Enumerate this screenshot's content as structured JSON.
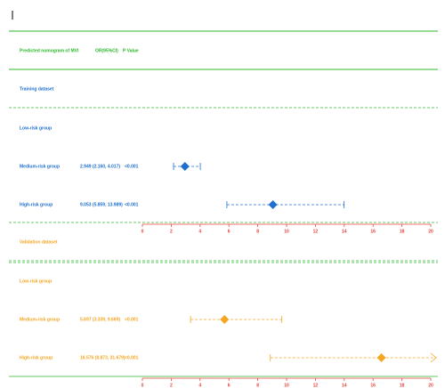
{
  "chart_data": {
    "type": "forest",
    "header": {
      "title": "Predicted nomogram of MVI",
      "or_label": "OR(95%CI)",
      "p_label": "P Value"
    },
    "xlim": [
      0,
      20
    ],
    "xticks": [
      0,
      2,
      4,
      6,
      8,
      10,
      12,
      14,
      16,
      18,
      20
    ],
    "axis_color": "#e8453c",
    "line_color": "#2db82d",
    "groups": [
      {
        "name": "Training dataset",
        "color": "#1f6fd1",
        "rows": [
          {
            "label": "Low-risk group"
          },
          {
            "label": "Medium-risk group",
            "or_text": "2.949 (2.160, 4.017)",
            "p": "<0.001",
            "value": 2.949,
            "lower": 2.16,
            "upper": 4.017
          },
          {
            "label": "High-risk group",
            "or_text": "9.053 (5.859, 13.989)",
            "p": "<0.001",
            "value": 9.053,
            "lower": 5.859,
            "upper": 13.989
          }
        ]
      },
      {
        "name": "Validation dataset",
        "color": "#f5a623",
        "rows": [
          {
            "label": "Low-risk group"
          },
          {
            "label": "Medium-risk group",
            "or_text": "5.697 (3.339, 9.669)",
            "p": "<0.001",
            "value": 5.697,
            "lower": 3.339,
            "upper": 9.669
          },
          {
            "label": "High-risk group",
            "or_text": "16.576 (8.873, 31.679)",
            "p": "<0.001",
            "value": 16.576,
            "lower": 8.873,
            "upper": 31.679
          }
        ]
      }
    ]
  }
}
